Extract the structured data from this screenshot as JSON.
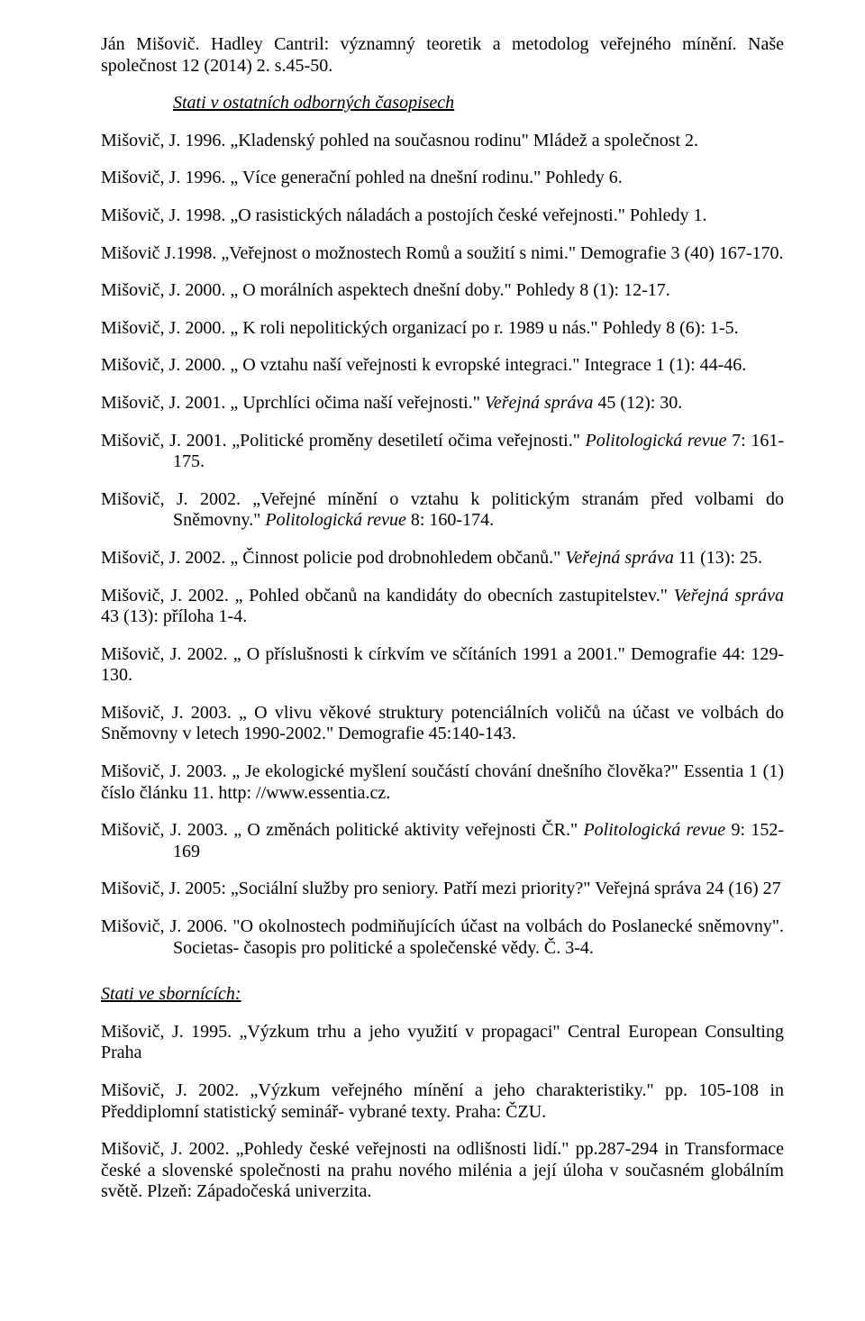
{
  "p1": {
    "a": "Ján Mišovič. Hadley Cantril: významný teoretik a metodolog veřejného mínění. Naše společnost 12 (2014) 2. s.45-50."
  },
  "h1": "Stati v ostatních odborných časopisech",
  "p2": "Mišovič, J. 1996. „Kladenský pohled na současnou rodinu\" Mládež a společnost 2.",
  "p3": "Mišovič, J. 1996. „ Více generační pohled na dnešní rodinu.\" Pohledy 6.",
  "p4": "Mišovič, J. 1998. „O rasistických náladách a postojích české veřejnosti.\" Pohledy 1.",
  "p5": "Mišovič J.1998. „Veřejnost o možnostech Romů a soužití s nimi.\" Demografie 3 (40) 167-170.",
  "p6": "Mišovič, J. 2000. „ O morálních aspektech dnešní doby.\" Pohledy 8 (1): 12-17.",
  "p7": "Mišovič, J. 2000. „ K roli nepolitických organizací po r. 1989 u nás.\" Pohledy 8 (6): 1-5.",
  "p8": "Mišovič, J. 2000. „ O vztahu naší veřejnosti k evropské integraci.\" Integrace 1 (1): 44-46.",
  "p9": {
    "a": "Mišovič, J. 2001. „ Uprchlíci očima naší veřejnosti.\" ",
    "b": "Veřejná správa",
    "c": " 45 (12): 30."
  },
  "p10": {
    "a": "Mišovič, J. 2001. „Politické proměny desetiletí očima veřejnosti.\" ",
    "b": "Politologická  revue",
    "c": "  7: 161-175."
  },
  "p11": {
    "a": "Mišovič, J. 2002. „Veřejné  mínění o vztahu k politickým stranám před volbami do Sněmovny.\" ",
    "b": "Politologická revue",
    "c": "  8: 160-174."
  },
  "p12": {
    "a": "Mišovič, J. 2002. „ Činnost policie pod drobnohledem občanů.\" ",
    "b": "Veřejná správa",
    "c": " 11 (13): 25."
  },
  "p13": {
    "a": "Mišovič, J. 2002. „ Pohled občanů na kandidáty do obecních zastupitelstev.\" ",
    "b": "Veřejná správa",
    "c": " 43 (13): příloha 1-4."
  },
  "p14": "Mišovič, J. 2002. „ O příslušnosti k církvím ve sčítáních 1991 a 2001.\" Demografie 44: 129-130.",
  "p15": "Mišovič, J. 2003. „ O vlivu věkové struktury potenciálních voličů na účast ve volbách do Sněmovny v letech 1990-2002.\" Demografie 45:140-143.",
  "p16": "Mišovič, J. 2003. „ Je ekologické myšlení součástí chování dnešního člověka?\" Essentia 1 (1) číslo článku 11. http: //www.essentia.cz.",
  "p17": {
    "a": "Mišovič, J. 2003. „ O změnách politické aktivity veřejnosti ČR.\" ",
    "b": "Politologická revue",
    "c": "  9: 152-169"
  },
  "p18": "Mišovič, J. 2005: „Sociální služby pro seniory. Patří mezi priority?\" Veřejná správa 24 (16) 27",
  "p19": "Mišovič, J. 2006. \"O okolnostech podmiňujících účast na volbách do Poslanecké sněmovny\". Societas- časopis pro politické a společenské vědy. Č. 3-4.",
  "h2": "Stati ve sbornících:",
  "p20": "Mišovič, J. 1995. „Výzkum trhu a jeho využití v propagaci\" Central European Consulting Praha",
  "p21": "Mišovič, J. 2002. „Výzkum veřejného mínění a jeho charakteristiky.\" pp. 105-108 in Předdiplomní statistický seminář- vybrané texty. Praha: ČZU.",
  "p22": "Mišovič, J. 2002. „Pohledy české veřejnosti na odlišnosti lidí.\" pp.287-294 in Transformace české a slovenské společnosti na prahu nového milénia a její úloha v současném globálním světě. Plzeň: Západočeská univerzita."
}
